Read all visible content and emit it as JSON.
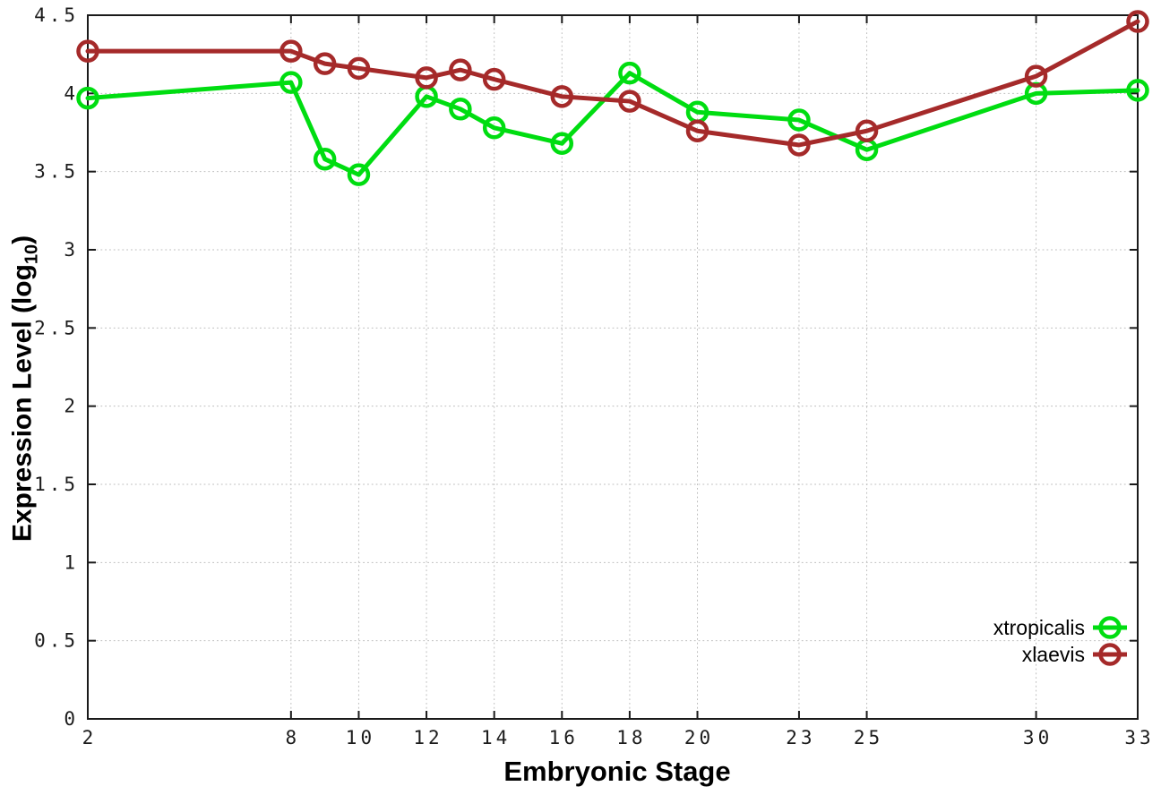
{
  "chart_data": {
    "type": "line",
    "title": "",
    "xlabel": "Embryonic Stage",
    "ylabel": {
      "main": "Expression Level (log",
      "sub": "10",
      "close": ")"
    },
    "xlim": [
      2,
      33
    ],
    "ylim": [
      0,
      4.5
    ],
    "x_ticks": [
      2,
      8,
      10,
      12,
      14,
      16,
      18,
      20,
      23,
      25,
      30,
      33
    ],
    "y_ticks": [
      0,
      0.5,
      1,
      1.5,
      2,
      2.5,
      3,
      3.5,
      4,
      4.5
    ],
    "grid": "dotted",
    "legend_position": "inside-bottom-right",
    "marker": "open-circle",
    "x": [
      2,
      8,
      9,
      10,
      12,
      13,
      14,
      16,
      18,
      20,
      23,
      25,
      30,
      33
    ],
    "series": [
      {
        "name": "xtropicalis",
        "color": "#00dd11",
        "values": [
          3.97,
          4.07,
          3.58,
          3.48,
          3.98,
          3.9,
          3.78,
          3.68,
          4.13,
          3.88,
          3.83,
          3.64,
          4.0,
          4.02
        ]
      },
      {
        "name": "xlaevis",
        "color": "#a52a2a",
        "values": [
          4.27,
          4.27,
          4.19,
          4.16,
          4.1,
          4.15,
          4.09,
          3.98,
          3.95,
          3.76,
          3.67,
          3.76,
          4.11,
          4.46
        ]
      }
    ]
  },
  "style": {
    "grid_color": "#bdbdbd",
    "axis_color": "#1a1a1a",
    "tick_label_color": "#1c1c1c"
  }
}
